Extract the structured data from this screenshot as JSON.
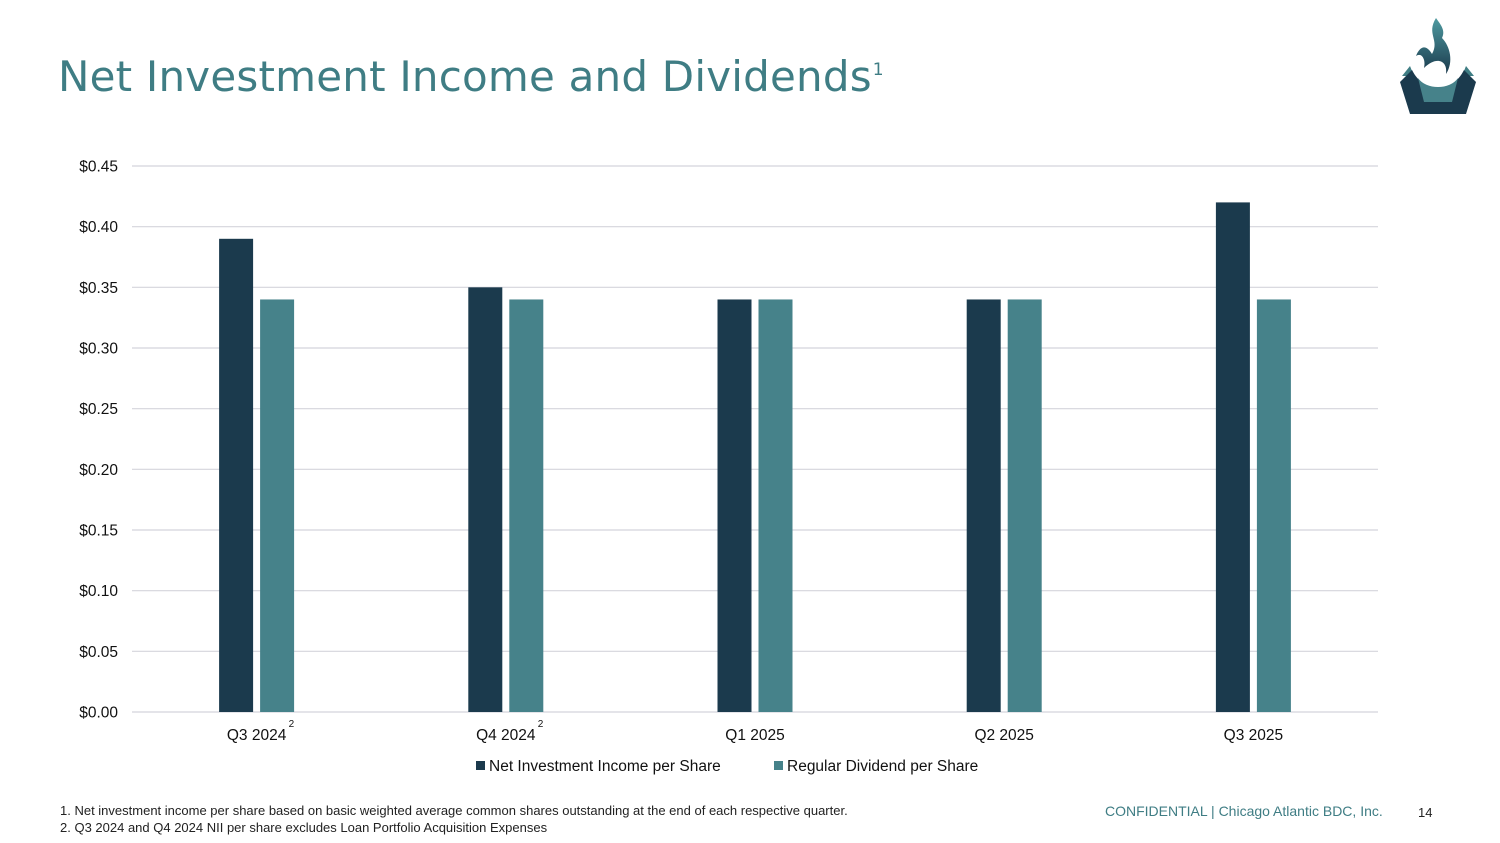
{
  "slide": {
    "title": "Net Investment Income and Dividends",
    "title_sup": "1",
    "footnotes": [
      "1. Net investment income per share based on basic weighted average common shares outstanding at the end of each respective quarter.",
      "2. Q3 2024 and Q4 2024 NII per share excludes Loan Portfolio Acquisition Expenses"
    ],
    "confidential": "CONFIDENTIAL | Chicago Atlantic BDC, Inc.",
    "page_number": "14"
  },
  "chart_data": {
    "type": "bar",
    "categories": [
      "Q3 2024",
      "Q4 2024",
      "Q1 2025",
      "Q2 2025",
      "Q3 2025"
    ],
    "category_superscripts": [
      "2",
      "2",
      "",
      "",
      ""
    ],
    "series": [
      {
        "name": "Net Investment Income per Share",
        "values": [
          0.39,
          0.35,
          0.34,
          0.34,
          0.42
        ],
        "color": "#1b3a4d"
      },
      {
        "name": "Regular Dividend per Share",
        "values": [
          0.34,
          0.34,
          0.34,
          0.34,
          0.34
        ],
        "color": "#46828a"
      }
    ],
    "ylim": [
      0,
      0.45
    ],
    "yticks": [
      "$0.00",
      "$0.05",
      "$0.10",
      "$0.15",
      "$0.20",
      "$0.25",
      "$0.30",
      "$0.35",
      "$0.40",
      "$0.45"
    ],
    "grid": true,
    "legend": "bottom"
  },
  "colors": {
    "accent": "#3f7d84",
    "gridline": "#d4d4dc"
  }
}
